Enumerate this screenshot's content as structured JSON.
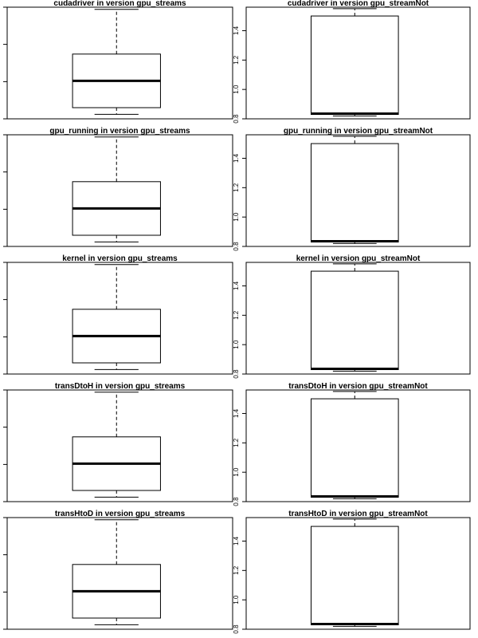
{
  "chart_data": [
    {
      "type": "box",
      "title": "cudadriver in version gpu_streams",
      "box": {
        "min": 0.04,
        "q1": 0.1,
        "median": 0.34,
        "q3": 0.58,
        "max": 0.98
      },
      "ylim": [
        0.0,
        1.0
      ],
      "yticks": []
    },
    {
      "type": "box",
      "title": "cudadriver in version gpu_streamNot",
      "box": {
        "min": 0.82,
        "q1": 0.83,
        "median": 0.835,
        "q3": 1.5,
        "max": 1.55
      },
      "ylim": [
        0.8,
        1.56
      ],
      "yticks": [
        "0.8",
        "1.0",
        "1.2",
        "1.4"
      ]
    },
    {
      "type": "box",
      "title": "gpu_running in version gpu_streams",
      "box": {
        "min": 0.04,
        "q1": 0.1,
        "median": 0.34,
        "q3": 0.58,
        "max": 0.98
      },
      "ylim": [
        0.0,
        1.0
      ],
      "yticks": []
    },
    {
      "type": "box",
      "title": "gpu_running in version gpu_streamNot",
      "box": {
        "min": 0.82,
        "q1": 0.83,
        "median": 0.835,
        "q3": 1.5,
        "max": 1.55
      },
      "ylim": [
        0.8,
        1.56
      ],
      "yticks": [
        "0.8",
        "1.0",
        "1.2",
        "1.4"
      ]
    },
    {
      "type": "box",
      "title": "kernel in version gpu_streams",
      "box": {
        "min": 0.04,
        "q1": 0.1,
        "median": 0.34,
        "q3": 0.58,
        "max": 0.98
      },
      "ylim": [
        0.0,
        1.0
      ],
      "yticks": []
    },
    {
      "type": "box",
      "title": "kernel in version gpu_streamNot",
      "box": {
        "min": 0.82,
        "q1": 0.83,
        "median": 0.835,
        "q3": 1.5,
        "max": 1.55
      },
      "ylim": [
        0.8,
        1.56
      ],
      "yticks": [
        "0.8",
        "1.0",
        "1.2",
        "1.4"
      ]
    },
    {
      "type": "box",
      "title": "transDtoH in version gpu_streams",
      "box": {
        "min": 0.04,
        "q1": 0.1,
        "median": 0.34,
        "q3": 0.58,
        "max": 0.98
      },
      "ylim": [
        0.0,
        1.0
      ],
      "yticks": []
    },
    {
      "type": "box",
      "title": "transDtoH in version gpu_streamNot",
      "box": {
        "min": 0.82,
        "q1": 0.83,
        "median": 0.835,
        "q3": 1.5,
        "max": 1.55
      },
      "ylim": [
        0.8,
        1.56
      ],
      "yticks": [
        "0.8",
        "1.0",
        "1.2",
        "1.4"
      ]
    },
    {
      "type": "box",
      "title": "transHtoD in version gpu_streams",
      "box": {
        "min": 0.04,
        "q1": 0.1,
        "median": 0.34,
        "q3": 0.58,
        "max": 0.98
      },
      "ylim": [
        0.0,
        1.0
      ],
      "yticks": []
    },
    {
      "type": "box",
      "title": "transHtoD in version gpu_streamNot",
      "box": {
        "min": 0.82,
        "q1": 0.83,
        "median": 0.835,
        "q3": 1.5,
        "max": 1.55
      },
      "ylim": [
        0.8,
        1.56
      ],
      "yticks": [
        "0.8",
        "1.0",
        "1.2",
        "1.4"
      ]
    }
  ]
}
